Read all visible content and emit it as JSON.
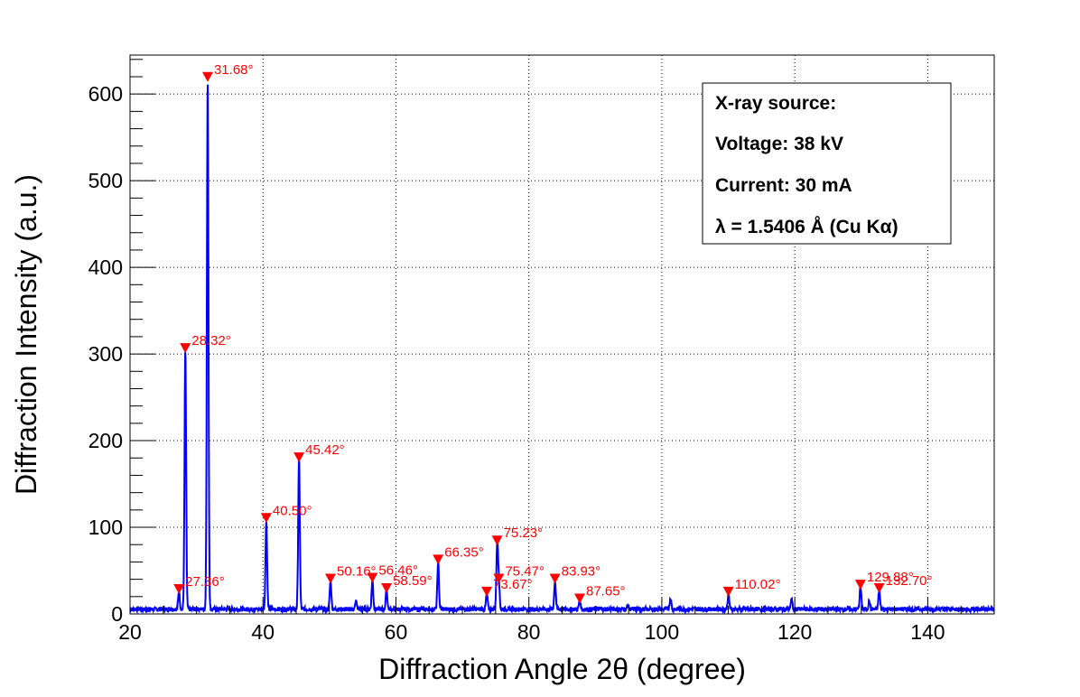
{
  "chart_data": {
    "type": "line",
    "xlabel": "Diffraction Angle 2θ (degree)",
    "ylabel": "Diffraction Intensity (a.u.)",
    "xlim": [
      20,
      150
    ],
    "ylim": [
      0,
      645
    ],
    "x_ticks": [
      "20",
      "40",
      "60",
      "80",
      "100",
      "120",
      "140"
    ],
    "y_ticks": [
      "0",
      "100",
      "200",
      "300",
      "400",
      "500",
      "600"
    ],
    "grid": true,
    "line_color": "#0000ff",
    "marker_color": "#ff0000",
    "baseline": 3,
    "series": [
      {
        "values": [
          {
            "x": 27.36,
            "y": 24
          },
          {
            "x": 28.32,
            "y": 302
          },
          {
            "x": 31.68,
            "y": 615
          },
          {
            "x": 40.5,
            "y": 106
          },
          {
            "x": 45.42,
            "y": 176
          },
          {
            "x": 50.16,
            "y": 36
          },
          {
            "x": 54.0,
            "y": 12
          },
          {
            "x": 56.46,
            "y": 37
          },
          {
            "x": 58.59,
            "y": 25
          },
          {
            "x": 66.35,
            "y": 58
          },
          {
            "x": 73.67,
            "y": 21
          },
          {
            "x": 75.23,
            "y": 80
          },
          {
            "x": 75.47,
            "y": 36
          },
          {
            "x": 83.93,
            "y": 36
          },
          {
            "x": 87.65,
            "y": 13
          },
          {
            "x": 94.9,
            "y": 7
          },
          {
            "x": 101.3,
            "y": 16
          },
          {
            "x": 110.02,
            "y": 21
          },
          {
            "x": 119.5,
            "y": 15
          },
          {
            "x": 129.88,
            "y": 29
          },
          {
            "x": 131.2,
            "y": 12
          },
          {
            "x": 132.7,
            "y": 25
          }
        ]
      }
    ],
    "peaks": [
      {
        "x": 27.36,
        "y": 24,
        "label": "27.36°"
      },
      {
        "x": 28.32,
        "y": 302,
        "label": "28.32°"
      },
      {
        "x": 31.68,
        "y": 615,
        "label": "31.68°"
      },
      {
        "x": 40.5,
        "y": 106,
        "label": "40.50°"
      },
      {
        "x": 45.42,
        "y": 176,
        "label": "45.42°"
      },
      {
        "x": 50.16,
        "y": 36,
        "label": "50.16°"
      },
      {
        "x": 56.46,
        "y": 37,
        "label": "56.46°"
      },
      {
        "x": 58.59,
        "y": 25,
        "label": "58.59°"
      },
      {
        "x": 66.35,
        "y": 58,
        "label": "66.35°"
      },
      {
        "x": 73.67,
        "y": 21,
        "label": "73.67°"
      },
      {
        "x": 75.23,
        "y": 80,
        "label": "75.23°"
      },
      {
        "x": 75.47,
        "y": 36,
        "label": "75.47°"
      },
      {
        "x": 83.93,
        "y": 36,
        "label": "83.93°"
      },
      {
        "x": 87.65,
        "y": 13,
        "label": "87.65°"
      },
      {
        "x": 110.02,
        "y": 21,
        "label": "110.02°"
      },
      {
        "x": 129.88,
        "y": 29,
        "label": "129.88°"
      },
      {
        "x": 132.7,
        "y": 25,
        "label": "132.70°"
      }
    ],
    "legend": {
      "placement": "top-right",
      "lines": [
        "X-ray source:",
        "Voltage: 38 kV",
        "Current: 30 mA",
        "λ = 1.5406  Å (Cu Kα)"
      ]
    }
  }
}
